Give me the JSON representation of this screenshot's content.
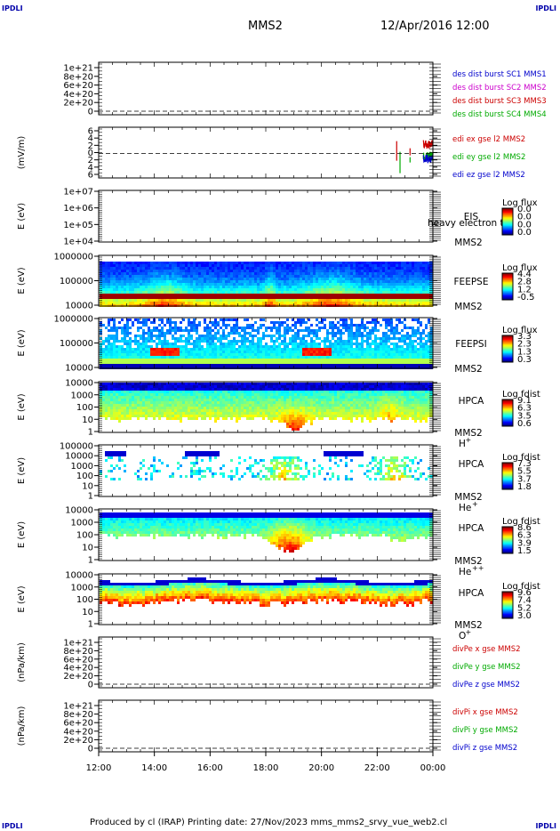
{
  "corner_labels": [
    "IPDLI",
    "IPDLI",
    "IPDLI",
    "IPDLI"
  ],
  "header": {
    "spacecraft": "MMS2",
    "datetime": "12/Apr/2016 12:00"
  },
  "footer": {
    "text": "Produced by cl (IRAP)   Printing date: 27/Nov/2023   mms_mms2_srvy_vue_web2.cl"
  },
  "colors": {
    "blue": "#0000cc",
    "magenta": "#cc00cc",
    "red": "#cc0000",
    "green": "#00aa00"
  },
  "chart_data": {
    "type": "stacked-timeseries",
    "time_axis": {
      "ticks": [
        "12:00",
        "14:00",
        "16:00",
        "18:00",
        "20:00",
        "22:00",
        "00:00"
      ],
      "range_hours": [
        12,
        24
      ]
    },
    "panels": [
      {
        "id": "des-dist",
        "kind": "line",
        "ylabel": "",
        "yticks": [
          "1e+21",
          "8e+20",
          "6e+20",
          "4e+20",
          "2e+20",
          "0"
        ],
        "zero_line": true,
        "legend": [
          {
            "text": "des dist burst SC1 MMS1",
            "color": "#0000cc"
          },
          {
            "text": "des dist burst SC2 MMS2",
            "color": "#cc00cc"
          },
          {
            "text": "des dist burst SC3 MMS3",
            "color": "#cc0000"
          },
          {
            "text": "des dist burst SC4 MMS4",
            "color": "#00aa00"
          }
        ]
      },
      {
        "id": "edi-e",
        "kind": "line",
        "ylabel": "(mV/m)",
        "yticks": [
          "6",
          "4",
          "2",
          "0",
          "2",
          "4",
          "6"
        ],
        "zero_line": true,
        "data_start_hour": 22.7,
        "legend": [
          {
            "text": "edi ex gse l2 MMS2",
            "color": "#cc0000"
          },
          {
            "text": "edi ey gse l2 MMS2",
            "color": "#00aa00"
          },
          {
            "text": "edi ez gse l2 MMS2",
            "color": "#0000cc"
          }
        ]
      },
      {
        "id": "eis",
        "kind": "spectrogram-empty",
        "ylabel": "E (eV)",
        "yticks": [
          "1e+07",
          "1e+06",
          "1e+05",
          "1e+04"
        ],
        "side_labels": [
          "EIS",
          "MMS2"
        ],
        "overlay_text": "heavy electron to",
        "colorbar": {
          "title": "Log flux",
          "ticks": [
            "0.0",
            "0.0",
            "0.0",
            "0.0"
          ]
        }
      },
      {
        "id": "feepse",
        "kind": "spectrogram",
        "profile": "feepse",
        "ylabel": "E (eV)",
        "yticks": [
          "1000000",
          "100000",
          "10000"
        ],
        "side_labels": [
          "FEEPSE",
          "MMS2"
        ],
        "colorbar": {
          "title": "Log flux",
          "ticks": [
            "4.4",
            "2.8",
            "1.2",
            "-0.5"
          ]
        }
      },
      {
        "id": "feepsi",
        "kind": "spectrogram",
        "profile": "feepsi",
        "ylabel": "E (eV)",
        "yticks": [
          "1000000",
          "100000",
          "10000"
        ],
        "side_labels": [
          "FEEPSI",
          "MMS2"
        ],
        "colorbar": {
          "title": "Log flux",
          "ticks": [
            "3.3",
            "2.3",
            "1.3",
            "0.3"
          ]
        }
      },
      {
        "id": "hpca-h",
        "kind": "spectrogram",
        "profile": "hpca_h",
        "ylabel": "E (eV)",
        "yticks": [
          "10000",
          "1000",
          "100",
          "10",
          "1"
        ],
        "side_labels": [
          "HPCA",
          "MMS2"
        ],
        "species": {
          "base": "H",
          "sup": "+"
        },
        "colorbar": {
          "title": "Log fdist",
          "ticks": [
            "9.1",
            "6.3",
            "3.5",
            "0.6"
          ]
        }
      },
      {
        "id": "hpca-he",
        "kind": "spectrogram",
        "profile": "hpca_he",
        "ylabel": "E (eV)",
        "yticks": [
          "100000",
          "10000",
          "1000",
          "100",
          "10",
          "1"
        ],
        "side_labels": [
          "HPCA",
          "MMS2"
        ],
        "species": {
          "base": "He",
          "sup": "+"
        },
        "colorbar": {
          "title": "Log fdist",
          "ticks": [
            "7.3",
            "5.5",
            "3.7",
            "1.8"
          ]
        }
      },
      {
        "id": "hpca-hepp",
        "kind": "spectrogram",
        "profile": "hpca_hepp",
        "ylabel": "E (eV)",
        "yticks": [
          "10000",
          "1000",
          "100",
          "10",
          "1"
        ],
        "side_labels": [
          "HPCA",
          "MMS2"
        ],
        "species": {
          "base": "He",
          "sup": "++"
        },
        "colorbar": {
          "title": "Log fdist",
          "ticks": [
            "8.6",
            "6.3",
            "3.9",
            "1.5"
          ]
        }
      },
      {
        "id": "hpca-o",
        "kind": "spectrogram",
        "profile": "hpca_o",
        "ylabel": "E (eV)",
        "yticks": [
          "10000",
          "1000",
          "100",
          "10",
          "1"
        ],
        "side_labels": [
          "HPCA",
          "MMS2"
        ],
        "species": {
          "base": "O",
          "sup": "+"
        },
        "colorbar": {
          "title": "Log fdist",
          "ticks": [
            "9.6",
            "7.4",
            "5.2",
            "3.0"
          ]
        }
      },
      {
        "id": "divpe",
        "kind": "line",
        "ylabel": "(nPa/km)",
        "yticks": [
          "1e+21",
          "8e+20",
          "6e+20",
          "4e+20",
          "2e+20",
          "0"
        ],
        "zero_line": true,
        "legend": [
          {
            "text": "divPe x gse MMS2",
            "color": "#cc0000"
          },
          {
            "text": "divPe y gse MMS2",
            "color": "#00aa00"
          },
          {
            "text": "divPe z gse MMS2",
            "color": "#0000cc"
          }
        ]
      },
      {
        "id": "divpi",
        "kind": "line",
        "ylabel": "(nPa/km)",
        "yticks": [
          "1e+21",
          "8e+20",
          "6e+20",
          "4e+20",
          "2e+20",
          "0"
        ],
        "zero_line": true,
        "legend": [
          {
            "text": "divPi x gse MMS2",
            "color": "#cc0000"
          },
          {
            "text": "divPi y gse MMS2",
            "color": "#00aa00"
          },
          {
            "text": "divPi z gse MMS2",
            "color": "#0000cc"
          }
        ]
      }
    ]
  }
}
